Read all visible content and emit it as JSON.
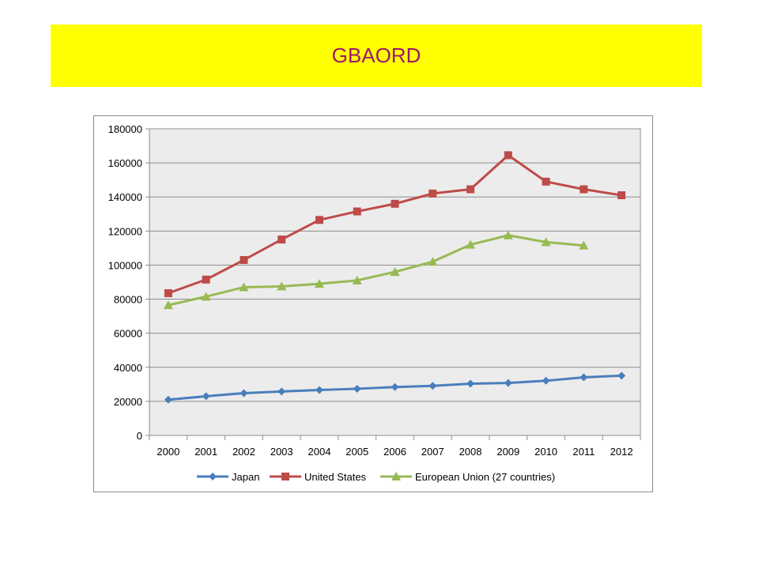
{
  "title": "GBAORD",
  "colors": {
    "banner": "#ffff00",
    "title_text": "#9b1a6b",
    "plot_bg": "#ececec"
  },
  "chart_data": {
    "type": "line",
    "title": "",
    "xlabel": "",
    "ylabel": "",
    "categories": [
      "2000",
      "2001",
      "2002",
      "2003",
      "2004",
      "2005",
      "2006",
      "2007",
      "2008",
      "2009",
      "2010",
      "2011",
      "2012"
    ],
    "ylim": [
      0,
      180000
    ],
    "yticks": [
      0,
      20000,
      40000,
      60000,
      80000,
      100000,
      120000,
      140000,
      160000,
      180000
    ],
    "grid": true,
    "legend_position": "bottom",
    "series": [
      {
        "name": "Japan",
        "color": "#4a7ebb",
        "marker": "diamond",
        "values": [
          21000,
          23000,
          24800,
          25800,
          26700,
          27400,
          28400,
          29100,
          30400,
          30800,
          32100,
          34100,
          35100
        ]
      },
      {
        "name": "United States",
        "color": "#be4b48",
        "marker": "square",
        "values": [
          83500,
          91500,
          103000,
          115000,
          126500,
          131500,
          136000,
          142000,
          144500,
          164500,
          149000,
          144500,
          141000
        ]
      },
      {
        "name": "European Union (27 countries)",
        "color": "#98b954",
        "marker": "triangle",
        "values": [
          76500,
          81500,
          87000,
          87500,
          89000,
          91000,
          96000,
          102000,
          112000,
          117500,
          113500,
          111500,
          null
        ]
      }
    ]
  }
}
